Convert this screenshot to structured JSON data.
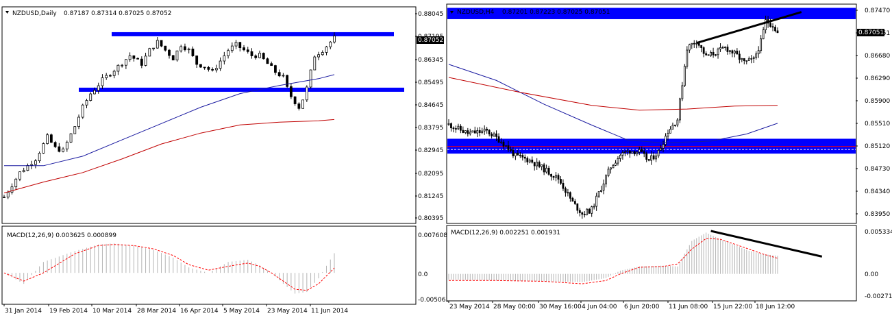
{
  "chart_data": [
    {
      "type": "candlestick",
      "symbol_header": "NZDUSD,Daily",
      "ohlc_header": "0.87187 0.87314 0.87025 0.87052",
      "current_price": "0.87052",
      "price_ticks": [
        "0.88045",
        "0.87195",
        "0.86345",
        "0.85495",
        "0.84645",
        "0.83795",
        "0.82945",
        "0.82095",
        "0.81245",
        "0.80395"
      ],
      "price_range": [
        0.8028,
        0.8814
      ],
      "x_labels": [
        "31 Jan 2014",
        "19 Feb 2014",
        "10 Mar 2014",
        "28 Mar 2014",
        "16 Apr 2014",
        "5 May 2014",
        "23 May 2014",
        "11 Jun 2014"
      ],
      "price_path": [
        [
          0,
          0.812
        ],
        [
          4,
          0.821
        ],
        [
          8,
          0.826
        ],
        [
          11,
          0.834
        ],
        [
          13,
          0.83
        ],
        [
          15,
          0.829
        ],
        [
          18,
          0.838
        ],
        [
          20,
          0.845
        ],
        [
          22,
          0.85
        ],
        [
          25,
          0.855
        ],
        [
          29,
          0.86
        ],
        [
          32,
          0.864
        ],
        [
          35,
          0.861
        ],
        [
          37,
          0.866
        ],
        [
          39,
          0.869
        ],
        [
          41,
          0.866
        ],
        [
          43,
          0.863
        ],
        [
          45,
          0.868
        ],
        [
          47,
          0.866
        ],
        [
          49,
          0.861
        ],
        [
          51,
          0.86
        ],
        [
          53,
          0.858
        ],
        [
          55,
          0.862
        ],
        [
          57,
          0.866
        ],
        [
          59,
          0.868
        ],
        [
          61,
          0.866
        ],
        [
          63,
          0.864
        ],
        [
          65,
          0.864
        ],
        [
          67,
          0.861
        ],
        [
          69,
          0.858
        ],
        [
          71,
          0.856
        ],
        [
          72,
          0.852
        ],
        [
          73,
          0.849
        ],
        [
          75,
          0.845
        ],
        [
          76,
          0.848
        ],
        [
          77,
          0.852
        ],
        [
          79,
          0.864
        ],
        [
          81,
          0.866
        ],
        [
          83,
          0.869
        ],
        [
          84,
          0.8705
        ]
      ],
      "ema_blue": [
        [
          0,
          0.8235
        ],
        [
          10,
          0.8235
        ],
        [
          20,
          0.827
        ],
        [
          30,
          0.833
        ],
        [
          40,
          0.839
        ],
        [
          50,
          0.845
        ],
        [
          60,
          0.85
        ],
        [
          70,
          0.853
        ],
        [
          80,
          0.8555
        ],
        [
          84,
          0.857
        ]
      ],
      "ema_red": [
        [
          0,
          0.8135
        ],
        [
          10,
          0.8175
        ],
        [
          20,
          0.821
        ],
        [
          30,
          0.826
        ],
        [
          40,
          0.8315
        ],
        [
          50,
          0.8355
        ],
        [
          60,
          0.8385
        ],
        [
          70,
          0.8395
        ],
        [
          80,
          0.84
        ],
        [
          84,
          0.8405
        ]
      ],
      "sr_zones": [
        [
          0.8716,
          0.8726
        ],
        [
          0.851,
          0.8522
        ]
      ],
      "macd": {
        "header": "MACD(12,26,9) 0.003625 0.000899",
        "ticks": [
          "0.007608",
          "0.0",
          "-0.005065"
        ],
        "range": [
          -0.0055,
          0.0083
        ],
        "histogram": [
          [
            0,
            0.0
          ],
          [
            5,
            -0.002
          ],
          [
            10,
            0.002
          ],
          [
            18,
            0.004
          ],
          [
            24,
            0.0052
          ],
          [
            28,
            0.0054
          ],
          [
            33,
            0.005
          ],
          [
            38,
            0.0042
          ],
          [
            43,
            0.0028
          ],
          [
            47,
            0.001
          ],
          [
            52,
            0.0
          ],
          [
            57,
            0.002
          ],
          [
            62,
            0.0024
          ],
          [
            65,
            0.0014
          ],
          [
            68,
            0.0
          ],
          [
            71,
            -0.002
          ],
          [
            74,
            -0.0038
          ],
          [
            77,
            -0.0035
          ],
          [
            80,
            -0.001
          ],
          [
            84,
            0.0036
          ]
        ],
        "signal": [
          [
            0,
            0.0
          ],
          [
            5,
            -0.0015
          ],
          [
            10,
            0.0
          ],
          [
            18,
            0.0035
          ],
          [
            24,
            0.005
          ],
          [
            28,
            0.0052
          ],
          [
            33,
            0.005
          ],
          [
            38,
            0.0044
          ],
          [
            43,
            0.0032
          ],
          [
            47,
            0.0015
          ],
          [
            52,
            0.0005
          ],
          [
            57,
            0.0012
          ],
          [
            62,
            0.0018
          ],
          [
            65,
            0.0012
          ],
          [
            68,
            0.0
          ],
          [
            71,
            -0.0015
          ],
          [
            74,
            -0.003
          ],
          [
            77,
            -0.0032
          ],
          [
            80,
            -0.002
          ],
          [
            84,
            0.0009
          ]
        ]
      }
    },
    {
      "type": "candlestick",
      "symbol_header": "NZDUSD,H4",
      "ohlc_header": "0.87201 0.87223 0.87025 0.87051",
      "current_price": "0.87051",
      "price_ticks": [
        "0.87470",
        "0.87051",
        "0.86680",
        "0.86290",
        "0.85900",
        "0.85510",
        "0.85120",
        "0.84730",
        "0.84340",
        "0.83950"
      ],
      "price_range": [
        0.8387,
        0.8751
      ],
      "x_labels": [
        "23 May 2014",
        "28 May 00:00",
        "30 May 16:00",
        "4 Jun 04:00",
        "6 Jun 20:00",
        "11 Jun 08:00",
        "15 Jun 22:00",
        "18 Jun 12:00"
      ],
      "price_path": [
        [
          0,
          0.8551
        ],
        [
          8,
          0.8536
        ],
        [
          16,
          0.854
        ],
        [
          22,
          0.8523
        ],
        [
          28,
          0.8498
        ],
        [
          34,
          0.8491
        ],
        [
          40,
          0.8476
        ],
        [
          46,
          0.846
        ],
        [
          52,
          0.842
        ],
        [
          56,
          0.8401
        ],
        [
          60,
          0.8408
        ],
        [
          64,
          0.8445
        ],
        [
          68,
          0.848
        ],
        [
          72,
          0.85
        ],
        [
          76,
          0.8507
        ],
        [
          80,
          0.8505
        ],
        [
          84,
          0.849
        ],
        [
          88,
          0.8505
        ],
        [
          92,
          0.854
        ],
        [
          96,
          0.856
        ],
        [
          98,
          0.862
        ],
        [
          100,
          0.868
        ],
        [
          104,
          0.8692
        ],
        [
          108,
          0.8665
        ],
        [
          112,
          0.8672
        ],
        [
          116,
          0.868
        ],
        [
          120,
          0.867
        ],
        [
          124,
          0.8655
        ],
        [
          128,
          0.866
        ],
        [
          131,
          0.869
        ],
        [
          133,
          0.8725
        ],
        [
          136,
          0.8718
        ],
        [
          138,
          0.8705
        ]
      ],
      "ema_blue": [
        [
          0,
          0.8652
        ],
        [
          20,
          0.8625
        ],
        [
          40,
          0.8585
        ],
        [
          60,
          0.855
        ],
        [
          75,
          0.8525
        ],
        [
          90,
          0.852
        ],
        [
          110,
          0.8523
        ],
        [
          125,
          0.8535
        ],
        [
          138,
          0.8553
        ]
      ],
      "ema_red": [
        [
          0,
          0.863
        ],
        [
          30,
          0.8605
        ],
        [
          60,
          0.8583
        ],
        [
          80,
          0.8575
        ],
        [
          100,
          0.8577
        ],
        [
          120,
          0.8582
        ],
        [
          138,
          0.8583
        ]
      ],
      "sr_zones": [
        [
          0.8728,
          0.8747
        ],
        [
          0.8502,
          0.8527
        ]
      ],
      "trendlines": [
        [
          [
            104,
            0.8688
          ],
          [
            148,
            0.874
          ]
        ]
      ],
      "hlines": [
        {
          "value": 0.8514,
          "color": "#ff0000"
        },
        {
          "value": 0.8509,
          "color": "#ffffff",
          "dashed": true
        }
      ],
      "macd": {
        "header": "MACD(12,26,9) 0.002251 0.001931",
        "ticks": [
          "0.005334",
          "0.00",
          "-0.00271"
        ],
        "range": [
          -0.0031,
          0.0057
        ],
        "histogram": [
          [
            0,
            -0.0007
          ],
          [
            20,
            -0.0008
          ],
          [
            40,
            -0.0009
          ],
          [
            56,
            -0.001
          ],
          [
            66,
            -0.0005
          ],
          [
            72,
            0.0004
          ],
          [
            80,
            0.0009
          ],
          [
            90,
            0.001
          ],
          [
            96,
            0.0009
          ],
          [
            102,
            0.004
          ],
          [
            108,
            0.005
          ],
          [
            114,
            0.0042
          ],
          [
            120,
            0.0035
          ],
          [
            126,
            0.0028
          ],
          [
            132,
            0.0024
          ],
          [
            138,
            0.0022
          ]
        ],
        "signal": [
          [
            0,
            -0.0008
          ],
          [
            20,
            -0.0008
          ],
          [
            40,
            -0.0009
          ],
          [
            56,
            -0.0012
          ],
          [
            66,
            -0.0008
          ],
          [
            72,
            0.0
          ],
          [
            80,
            0.0008
          ],
          [
            90,
            0.0009
          ],
          [
            96,
            0.0012
          ],
          [
            102,
            0.003
          ],
          [
            108,
            0.0043
          ],
          [
            114,
            0.0042
          ],
          [
            120,
            0.0036
          ],
          [
            126,
            0.003
          ],
          [
            132,
            0.0024
          ],
          [
            138,
            0.0019
          ]
        ],
        "trendline": [
          [
            110,
            0.0052
          ],
          [
            148,
            0.0021
          ]
        ]
      }
    }
  ],
  "colors": {
    "candle": "#000000",
    "zone": "#0000ff",
    "ema_blue": "#1a1aa0",
    "ema_red": "#c00000",
    "macd_hist": "#b4b4b4",
    "macd_signal": "#ff0000",
    "trendline": "#000000"
  }
}
